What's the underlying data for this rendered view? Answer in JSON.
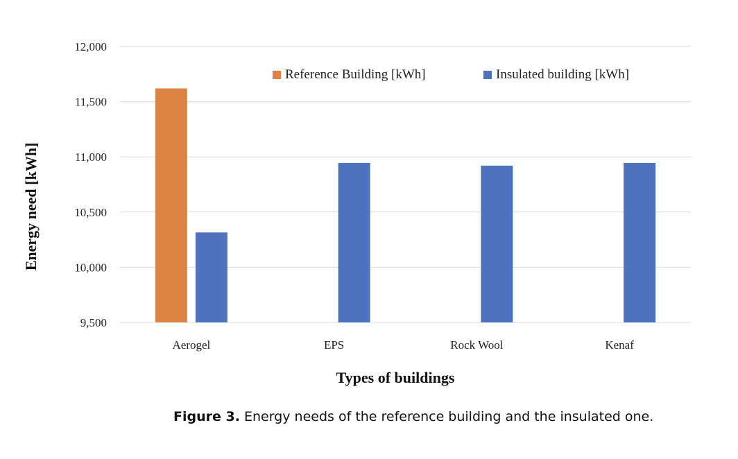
{
  "chart_data": {
    "type": "bar",
    "categories": [
      "Aerogel",
      "EPS",
      "Rock Wool",
      "Kenaf"
    ],
    "series": [
      {
        "name": "Reference Building [kWh]",
        "color": "#DD8444",
        "values": [
          11620,
          null,
          null,
          null
        ]
      },
      {
        "name": "Insulated building [kWh]",
        "color": "#4F72BE",
        "values": [
          10315,
          10945,
          10920,
          10945
        ]
      }
    ],
    "xlabel": "Types of buildings",
    "ylabel": "Energy need [kWh]",
    "ylim": [
      9500,
      12000
    ],
    "yticks": [
      9500,
      10000,
      10500,
      11000,
      11500,
      12000
    ],
    "ytick_labels": [
      "9,500",
      "10,000",
      "10,500",
      "11,000",
      "11,500",
      "12,000"
    ],
    "grid": true,
    "legend_position": "top-right"
  },
  "caption": {
    "label": "Figure 3.",
    "text": "Energy needs of the reference building and the insulated one."
  }
}
